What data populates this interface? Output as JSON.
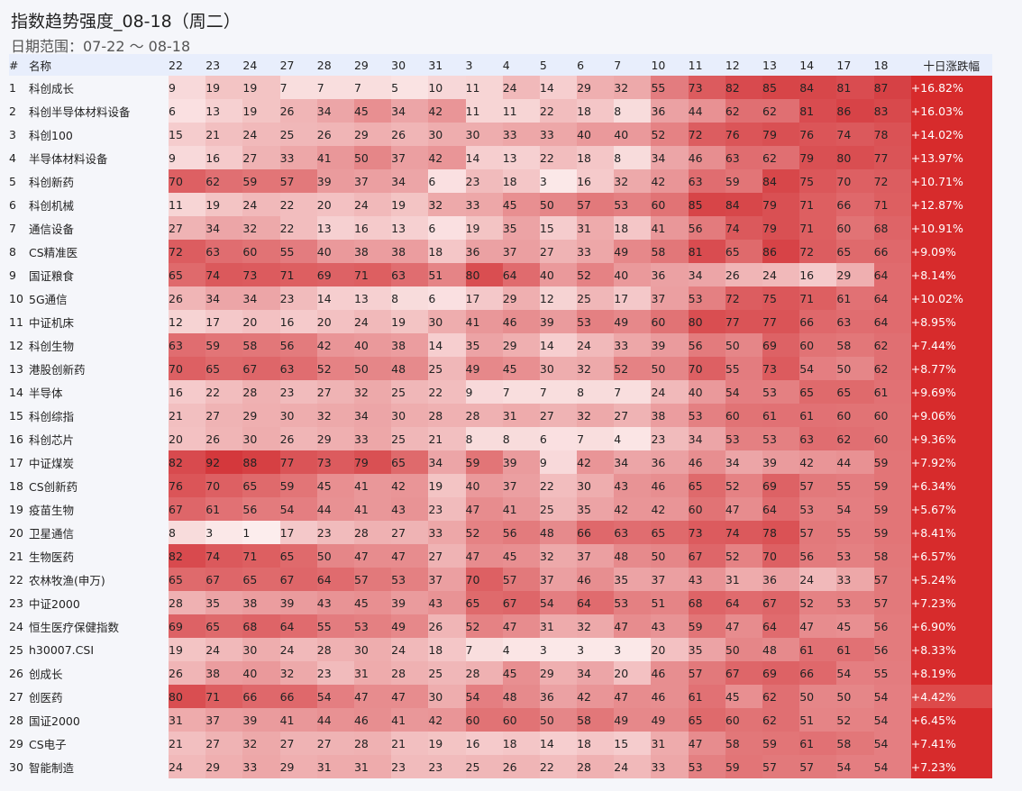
{
  "title": "指数趋势强度_08-18（周二）",
  "subtitle": "日期范围：07-22 ～ 08-18",
  "headers": {
    "index": "#",
    "name": "名称",
    "change": "十日涨跌幅"
  },
  "colors": {
    "heat_low": "#fdf0f0",
    "heat_high": "#d12a2e",
    "change_cell": "#d72b2c",
    "change_cell_low": "#dd4a4a",
    "background": "#f5f6fa",
    "header_bg": "#e8eefc"
  },
  "chart_data": {
    "type": "heatmap",
    "title": "指数趋势强度_08-18（周二）",
    "subtitle": "日期范围：07-22 ～ 08-18",
    "x": [
      "22",
      "23",
      "24",
      "27",
      "28",
      "29",
      "30",
      "31",
      "3",
      "4",
      "5",
      "6",
      "7",
      "10",
      "11",
      "12",
      "13",
      "14",
      "17",
      "18"
    ],
    "value_range": [
      0,
      100
    ],
    "rows": [
      {
        "idx": "1",
        "name": "科创成长",
        "values": [
          9,
          19,
          19,
          7,
          7,
          7,
          5,
          10,
          11,
          24,
          14,
          29,
          32,
          55,
          73,
          82,
          85,
          84,
          81,
          87
        ],
        "change": "+16.82%"
      },
      {
        "idx": "2",
        "name": "科创半导体材料设备",
        "values": [
          6,
          13,
          19,
          26,
          34,
          45,
          34,
          42,
          11,
          11,
          22,
          18,
          8,
          36,
          44,
          62,
          62,
          81,
          86,
          83
        ],
        "change": "+16.03%"
      },
      {
        "idx": "3",
        "name": "科创100",
        "values": [
          15,
          21,
          24,
          25,
          26,
          29,
          26,
          30,
          30,
          33,
          33,
          40,
          40,
          52,
          72,
          76,
          79,
          76,
          74,
          78
        ],
        "change": "+14.02%"
      },
      {
        "idx": "4",
        "name": "半导体材料设备",
        "values": [
          9,
          16,
          27,
          33,
          41,
          50,
          37,
          42,
          14,
          13,
          22,
          18,
          8,
          34,
          46,
          63,
          62,
          79,
          80,
          77
        ],
        "change": "+13.97%"
      },
      {
        "idx": "5",
        "name": "科创新药",
        "values": [
          70,
          62,
          59,
          57,
          39,
          37,
          34,
          6,
          23,
          18,
          3,
          16,
          32,
          42,
          63,
          59,
          84,
          75,
          70,
          72
        ],
        "change": "+10.71%"
      },
      {
        "idx": "6",
        "name": "科创机械",
        "values": [
          11,
          19,
          24,
          22,
          20,
          24,
          19,
          32,
          33,
          45,
          50,
          57,
          53,
          60,
          85,
          84,
          79,
          71,
          66,
          71
        ],
        "change": "+12.87%"
      },
      {
        "idx": "7",
        "name": "通信设备",
        "values": [
          27,
          34,
          32,
          22,
          13,
          16,
          13,
          6,
          19,
          35,
          15,
          31,
          18,
          41,
          56,
          74,
          79,
          71,
          60,
          68
        ],
        "change": "+10.91%"
      },
      {
        "idx": "8",
        "name": "CS精准医",
        "values": [
          72,
          63,
          60,
          55,
          40,
          38,
          38,
          18,
          36,
          37,
          27,
          33,
          49,
          58,
          81,
          65,
          86,
          72,
          65,
          66
        ],
        "change": "+9.09%"
      },
      {
        "idx": "9",
        "name": "国证粮食",
        "values": [
          65,
          74,
          73,
          71,
          69,
          71,
          63,
          51,
          80,
          64,
          40,
          52,
          40,
          36,
          34,
          26,
          24,
          16,
          29,
          64
        ],
        "change": "+8.14%"
      },
      {
        "idx": "10",
        "name": "5G通信",
        "values": [
          26,
          34,
          34,
          23,
          14,
          13,
          8,
          6,
          17,
          29,
          12,
          25,
          17,
          37,
          53,
          72,
          75,
          71,
          61,
          64
        ],
        "change": "+10.02%"
      },
      {
        "idx": "11",
        "name": "中证机床",
        "values": [
          12,
          17,
          20,
          16,
          20,
          24,
          19,
          30,
          41,
          46,
          39,
          53,
          49,
          60,
          80,
          77,
          77,
          66,
          63,
          64
        ],
        "change": "+8.95%"
      },
      {
        "idx": "12",
        "name": "科创生物",
        "values": [
          63,
          59,
          58,
          56,
          42,
          40,
          38,
          14,
          35,
          29,
          14,
          24,
          33,
          39,
          56,
          50,
          69,
          60,
          58,
          62
        ],
        "change": "+7.44%"
      },
      {
        "idx": "13",
        "name": "港股创新药",
        "values": [
          70,
          65,
          67,
          63,
          52,
          50,
          48,
          25,
          49,
          45,
          30,
          32,
          52,
          50,
          70,
          55,
          73,
          54,
          50,
          62
        ],
        "change": "+8.77%"
      },
      {
        "idx": "14",
        "name": "半导体",
        "values": [
          16,
          22,
          28,
          23,
          27,
          32,
          25,
          22,
          9,
          7,
          7,
          8,
          7,
          24,
          40,
          54,
          53,
          65,
          65,
          61
        ],
        "change": "+9.69%"
      },
      {
        "idx": "15",
        "name": "科创综指",
        "values": [
          21,
          27,
          29,
          30,
          32,
          34,
          30,
          28,
          28,
          31,
          27,
          32,
          27,
          38,
          53,
          60,
          61,
          61,
          60,
          60
        ],
        "change": "+9.06%"
      },
      {
        "idx": "16",
        "name": "科创芯片",
        "values": [
          20,
          26,
          30,
          26,
          29,
          33,
          25,
          21,
          8,
          8,
          6,
          7,
          4,
          23,
          34,
          53,
          53,
          63,
          62,
          60
        ],
        "change": "+9.36%"
      },
      {
        "idx": "17",
        "name": "中证煤炭",
        "values": [
          82,
          92,
          88,
          77,
          73,
          79,
          65,
          34,
          59,
          39,
          9,
          42,
          34,
          36,
          46,
          34,
          39,
          42,
          44,
          59
        ],
        "change": "+7.92%"
      },
      {
        "idx": "18",
        "name": "CS创新药",
        "values": [
          76,
          70,
          65,
          59,
          45,
          41,
          42,
          19,
          40,
          37,
          22,
          30,
          43,
          46,
          65,
          52,
          69,
          57,
          55,
          59
        ],
        "change": "+6.34%"
      },
      {
        "idx": "19",
        "name": "疫苗生物",
        "values": [
          67,
          61,
          56,
          54,
          44,
          41,
          43,
          23,
          47,
          41,
          25,
          35,
          42,
          42,
          60,
          47,
          64,
          53,
          54,
          59
        ],
        "change": "+5.67%"
      },
      {
        "idx": "20",
        "name": "卫星通信",
        "values": [
          8,
          3,
          1,
          17,
          23,
          28,
          27,
          33,
          52,
          56,
          48,
          66,
          63,
          65,
          73,
          74,
          78,
          57,
          55,
          59
        ],
        "change": "+8.41%"
      },
      {
        "idx": "21",
        "name": "生物医药",
        "values": [
          82,
          74,
          71,
          65,
          50,
          47,
          47,
          27,
          47,
          45,
          32,
          37,
          48,
          50,
          67,
          52,
          70,
          56,
          53,
          58
        ],
        "change": "+6.57%"
      },
      {
        "idx": "22",
        "name": "农林牧渔(申万)",
        "values": [
          65,
          67,
          65,
          67,
          64,
          57,
          53,
          37,
          70,
          57,
          37,
          46,
          35,
          37,
          43,
          31,
          36,
          24,
          33,
          57
        ],
        "change": "+5.24%"
      },
      {
        "idx": "23",
        "name": "中证2000",
        "values": [
          28,
          35,
          38,
          39,
          43,
          45,
          39,
          43,
          65,
          67,
          54,
          64,
          53,
          51,
          68,
          64,
          67,
          52,
          53,
          57
        ],
        "change": "+7.23%"
      },
      {
        "idx": "24",
        "name": "恒生医疗保健指数",
        "values": [
          69,
          65,
          68,
          64,
          55,
          53,
          49,
          26,
          52,
          47,
          31,
          32,
          47,
          43,
          59,
          47,
          64,
          47,
          45,
          56
        ],
        "change": "+6.90%"
      },
      {
        "idx": "25",
        "name": "h30007.CSI",
        "values": [
          19,
          24,
          30,
          24,
          28,
          30,
          24,
          18,
          7,
          4,
          3,
          3,
          3,
          20,
          35,
          50,
          48,
          61,
          61,
          56
        ],
        "change": "+8.33%"
      },
      {
        "idx": "26",
        "name": "创成长",
        "values": [
          26,
          38,
          40,
          32,
          23,
          31,
          28,
          25,
          28,
          45,
          29,
          34,
          20,
          46,
          57,
          67,
          69,
          66,
          54,
          55
        ],
        "change": "+8.19%"
      },
      {
        "idx": "27",
        "name": "创医药",
        "values": [
          80,
          71,
          66,
          66,
          54,
          47,
          47,
          30,
          54,
          48,
          36,
          42,
          47,
          46,
          61,
          45,
          62,
          50,
          50,
          54
        ],
        "change": "+4.42%"
      },
      {
        "idx": "28",
        "name": "国证2000",
        "values": [
          31,
          37,
          39,
          41,
          44,
          46,
          41,
          42,
          60,
          60,
          50,
          58,
          49,
          49,
          65,
          60,
          62,
          51,
          52,
          54
        ],
        "change": "+6.45%"
      },
      {
        "idx": "29",
        "name": "CS电子",
        "values": [
          21,
          27,
          32,
          27,
          27,
          28,
          21,
          19,
          16,
          18,
          14,
          18,
          15,
          31,
          47,
          58,
          59,
          61,
          58,
          54
        ],
        "change": "+7.41%"
      },
      {
        "idx": "30",
        "name": "智能制造",
        "values": [
          24,
          29,
          33,
          29,
          31,
          31,
          23,
          23,
          25,
          26,
          22,
          28,
          24,
          33,
          53,
          59,
          57,
          57,
          54,
          54
        ],
        "change": "+7.23%"
      }
    ]
  }
}
